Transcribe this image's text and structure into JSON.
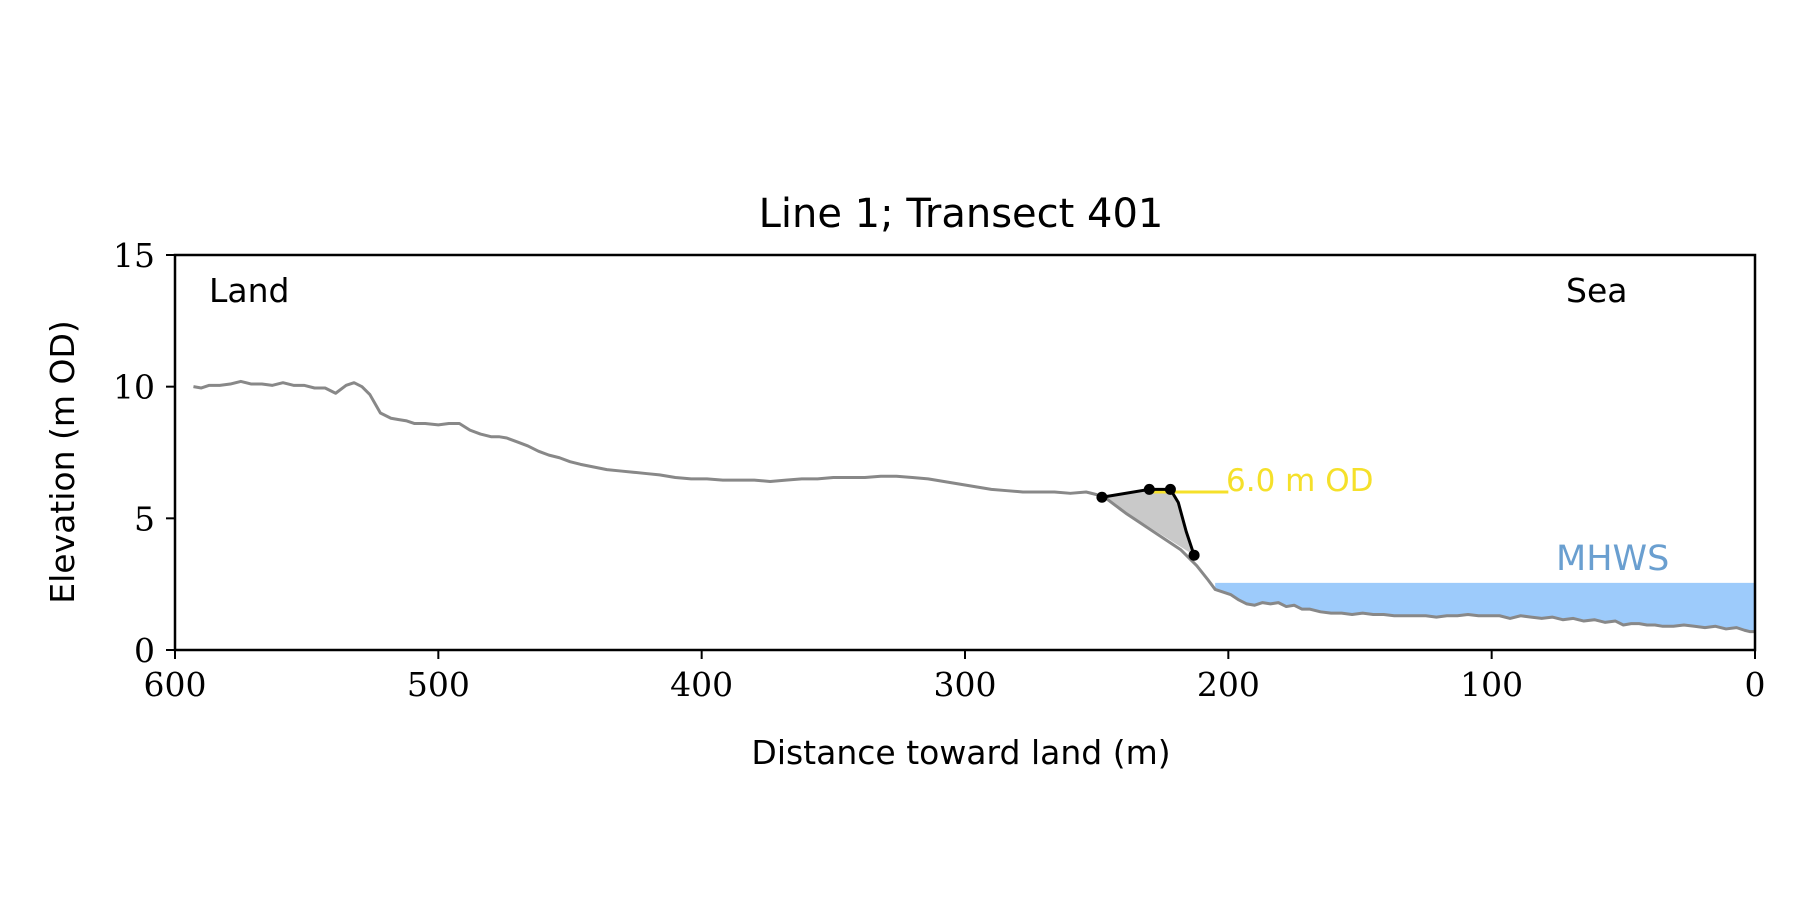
{
  "chart_data": {
    "type": "line",
    "title": "Line 1; Transect 401",
    "xlabel": "Distance toward land (m)",
    "ylabel": "Elevation (m OD)",
    "xlim": [
      600,
      0
    ],
    "ylim": [
      0,
      15
    ],
    "x_inverted": true,
    "xticks": [
      600,
      500,
      400,
      300,
      200,
      100,
      0
    ],
    "yticks": [
      0,
      5,
      10,
      15
    ],
    "grid": false,
    "annotations": {
      "land": "Land",
      "sea": "Sea",
      "mhws_label": "MHWS",
      "od_label": "6.0 m OD"
    },
    "colors": {
      "profile": "#888888",
      "water": "#9dcbfb",
      "mhws_text": "#6a9fd0",
      "od_line": "#f5e02a",
      "feature": "#000000",
      "shade": "#c9c9c9",
      "axes": "#000000"
    },
    "mhws": {
      "elevation": 2.55,
      "x_start": 205,
      "x_end": 0
    },
    "od_line": {
      "elevation": 6.0,
      "x_start": 230,
      "x_end": 200
    },
    "profile": {
      "x": [
        593,
        590,
        587,
        583,
        579,
        575,
        571,
        567,
        563,
        559,
        555,
        551,
        547,
        543,
        539,
        535,
        532,
        529,
        526,
        522,
        518,
        515,
        512,
        509,
        505,
        500,
        496,
        492,
        488,
        484,
        480,
        477,
        474,
        470,
        466,
        462,
        458,
        454,
        450,
        446,
        441,
        436,
        431,
        426,
        421,
        416,
        410,
        404,
        398,
        392,
        386,
        380,
        374,
        368,
        362,
        356,
        350,
        344,
        338,
        332,
        326,
        320,
        314,
        308,
        302,
        296,
        290,
        284,
        278,
        272,
        266,
        260,
        254,
        250,
        247,
        245,
        243,
        241,
        239,
        236,
        233,
        230,
        227,
        224,
        221,
        218,
        216,
        214,
        212,
        210,
        208,
        205,
        202,
        199,
        196,
        193,
        190,
        187,
        184,
        181,
        178,
        175,
        172,
        169,
        165,
        161,
        157,
        153,
        149,
        145,
        141,
        137,
        133,
        129,
        125,
        121,
        117,
        113,
        109,
        105,
        101,
        97,
        93,
        89,
        85,
        81,
        77,
        73,
        69,
        65,
        61,
        57,
        53,
        50,
        47,
        44,
        41,
        38,
        35,
        31,
        27,
        23,
        19,
        15,
        11,
        7,
        4,
        2,
        0
      ],
      "y": [
        10.0,
        9.95,
        10.05,
        10.05,
        10.1,
        10.2,
        10.1,
        10.1,
        10.05,
        10.15,
        10.05,
        10.05,
        9.95,
        9.95,
        9.75,
        10.05,
        10.15,
        10.0,
        9.7,
        9.0,
        8.8,
        8.75,
        8.7,
        8.6,
        8.6,
        8.55,
        8.6,
        8.6,
        8.35,
        8.2,
        8.1,
        8.1,
        8.05,
        7.9,
        7.75,
        7.55,
        7.4,
        7.3,
        7.15,
        7.05,
        6.95,
        6.85,
        6.8,
        6.75,
        6.7,
        6.65,
        6.55,
        6.5,
        6.5,
        6.45,
        6.45,
        6.45,
        6.4,
        6.45,
        6.5,
        6.5,
        6.55,
        6.55,
        6.55,
        6.6,
        6.6,
        6.55,
        6.5,
        6.4,
        6.3,
        6.2,
        6.1,
        6.05,
        6.0,
        6.0,
        6.0,
        5.95,
        6.0,
        5.9,
        5.8,
        5.65,
        5.5,
        5.35,
        5.2,
        5.0,
        4.8,
        4.6,
        4.4,
        4.2,
        4.0,
        3.8,
        3.6,
        3.4,
        3.2,
        2.95,
        2.7,
        2.3,
        2.2,
        2.1,
        1.9,
        1.75,
        1.7,
        1.8,
        1.75,
        1.8,
        1.65,
        1.7,
        1.55,
        1.55,
        1.45,
        1.4,
        1.4,
        1.35,
        1.4,
        1.35,
        1.35,
        1.3,
        1.3,
        1.3,
        1.3,
        1.25,
        1.3,
        1.3,
        1.35,
        1.3,
        1.3,
        1.3,
        1.2,
        1.3,
        1.25,
        1.2,
        1.25,
        1.15,
        1.2,
        1.1,
        1.15,
        1.05,
        1.1,
        0.95,
        1.0,
        1.0,
        0.95,
        0.95,
        0.9,
        0.9,
        0.95,
        0.9,
        0.85,
        0.9,
        0.8,
        0.85,
        0.75,
        0.7,
        0.7
      ]
    },
    "feature_line": {
      "x": [
        248,
        230,
        222,
        219,
        216,
        213
      ],
      "y": [
        5.8,
        6.1,
        6.1,
        5.6,
        4.5,
        3.6
      ]
    },
    "feature_markers": {
      "x": [
        248,
        230,
        222,
        213
      ],
      "y": [
        5.8,
        6.1,
        6.1,
        3.6
      ]
    },
    "shaded_region": {
      "x": [
        248,
        230,
        222,
        219,
        216,
        213,
        248
      ],
      "y": [
        5.8,
        6.1,
        6.1,
        5.6,
        4.5,
        3.6,
        5.8
      ]
    }
  }
}
